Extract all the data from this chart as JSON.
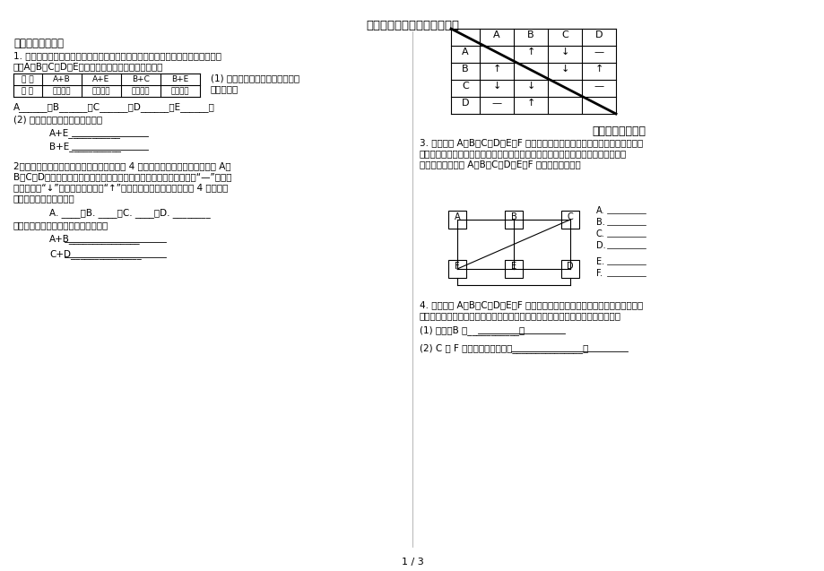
{
  "title": "初三化学物质推断题专题训练",
  "page_label": "1 / 3",
  "bg_color": "#ffffff",
  "text_color": "#000000",
  "section1_title": "一、表格式推断题",
  "q1_text1": "1. 有失去标签的硕酸馔、碳酸钓、硕酸銀、硕酸馒和稀盐酸五瓶溶液。将其任意编",
  "q1_text2": "号：A、B、C、D、E，进行两两混合，其现象如下表：",
  "q1_table_h1": "实 验",
  "q1_table_h2": "A+B",
  "q1_table_h3": "A+E",
  "q1_table_h4": "B+C",
  "q1_table_h5": "B+E",
  "q1_table_r1": "现 象",
  "q1_table_r2": "产生沉淠",
  "q1_table_r3": "产生沉淠",
  "q1_table_r4": "产生沉淠",
  "q1_table_r5": "产生气泡",
  "q1_q1a": "(1) 试推断并写出五种溶液中溶质",
  "q1_q1b": "的化学式。",
  "q1_ans1": "A______，B______，C______，D______，E______。",
  "q1_q2": "(2) 写出有关反应的化学方程式。",
  "q1_eq1": "A+E___________",
  "q1_eq2": "B+E___________",
  "q2_text1": "2．现有稀盐酸、稀硫酸、氪氧化钉、碳酸钓 4 瓶失去标签的溶液，分别编号为 A、",
  "q2_text2": "B、C、D。每次取少量溶液两两混合，所观察到的现象记录在下表中（“—”表示无",
  "q2_text3": "明显现象；“↓”表示有沈淠生成；“↑”表示有气体生成）。由此推断 4 瓶溶液中",
  "q2_text4": "的溶质的化学式分别为：",
  "q2_ans": "A. ____；B. ____；C. ____；D. ________",
  "q2_eq_title": "写出上述实验过程的有关反应方程式：",
  "q2_eq1": "A+B_______________",
  "q2_eq2": "C+D_______________",
  "section2_title": "二、连线式推断题",
  "q3_text1": "3. 下图中的 A、B、C、D、E、F 分别表示石灰水、硫酸铜溶液、碳酸钓溶液、氯",
  "q3_text2": "化钙溶液、盐酸和金属铁，它们之间的连线表明相邻的两种物质之间能发生反应。试",
  "q3_text3": "根据图中关系确定 A、B、C、D、E、F 各物质的化学式。",
  "q3_label_A": "A.",
  "q3_label_B": "B.",
  "q3_label_C": "C.",
  "q3_label_D": "D.",
  "q3_label_E": "E.",
  "q3_label_F": "F.",
  "q4_text1": "4. 下图里有 A、B、C、D、E、F 六种物质，它们是硕酸铜、碳酸钓、氯化钙、稀",
  "q4_text2": "硫酸、氯氧化馒五种溶液和单质铁。凡用直线相连的两物质间均可发生化学反应。",
  "q4_q1": "(1) 推断：B 是___________。",
  "q4_q2": "(2) C 和 F 反应的化学方程式是_______________。",
  "t2_h0": "",
  "t2_hA": "A",
  "t2_hB": "B",
  "t2_hC": "C",
  "t2_hD": "D",
  "t2_AA": "",
  "t2_AB": "↑",
  "t2_AC": "↓",
  "t2_AD": "—",
  "t2_BA": "↑",
  "t2_BB": "",
  "t2_BC": "↓",
  "t2_BD": "↑",
  "t2_CA": "↓",
  "t2_CB": "↓",
  "t2_CC": "",
  "t2_CD": "—",
  "t2_DA": "—",
  "t2_DB": "↑",
  "t2_DC": "",
  "t2_DD": ""
}
